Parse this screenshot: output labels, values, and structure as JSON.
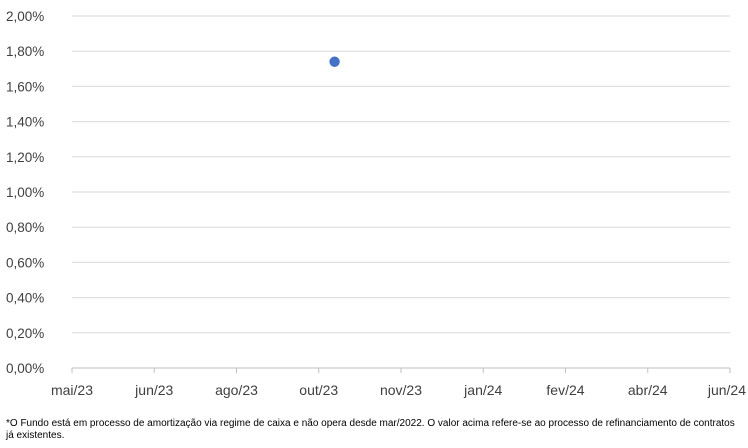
{
  "chart_data": {
    "type": "scatter",
    "x_tick_labels": [
      "mai/23",
      "jun/23",
      "ago/23",
      "out/23",
      "nov/23",
      "jan/24",
      "fev/24",
      "abr/24",
      "jun/24"
    ],
    "y_tick_labels": [
      "0,00%",
      "0,20%",
      "0,40%",
      "0,60%",
      "0,80%",
      "1,00%",
      "1,20%",
      "1,40%",
      "1,60%",
      "1,80%",
      "2,00%"
    ],
    "ylim": [
      0,
      2.0
    ],
    "series": [
      {
        "points": [
          {
            "x": "2023-10-18",
            "y": 1.74
          }
        ]
      }
    ],
    "grid": "horizontal",
    "colors": {
      "marker": "#4472C4",
      "grid": "#d9d9d9",
      "axis": "#bfbfbf"
    }
  },
  "footnote": "*O Fundo está em processo de amortização via regime de caixa e não opera desde mar/2022. O valor acima refere-se ao processo de refinanciamento de contratos já existentes."
}
